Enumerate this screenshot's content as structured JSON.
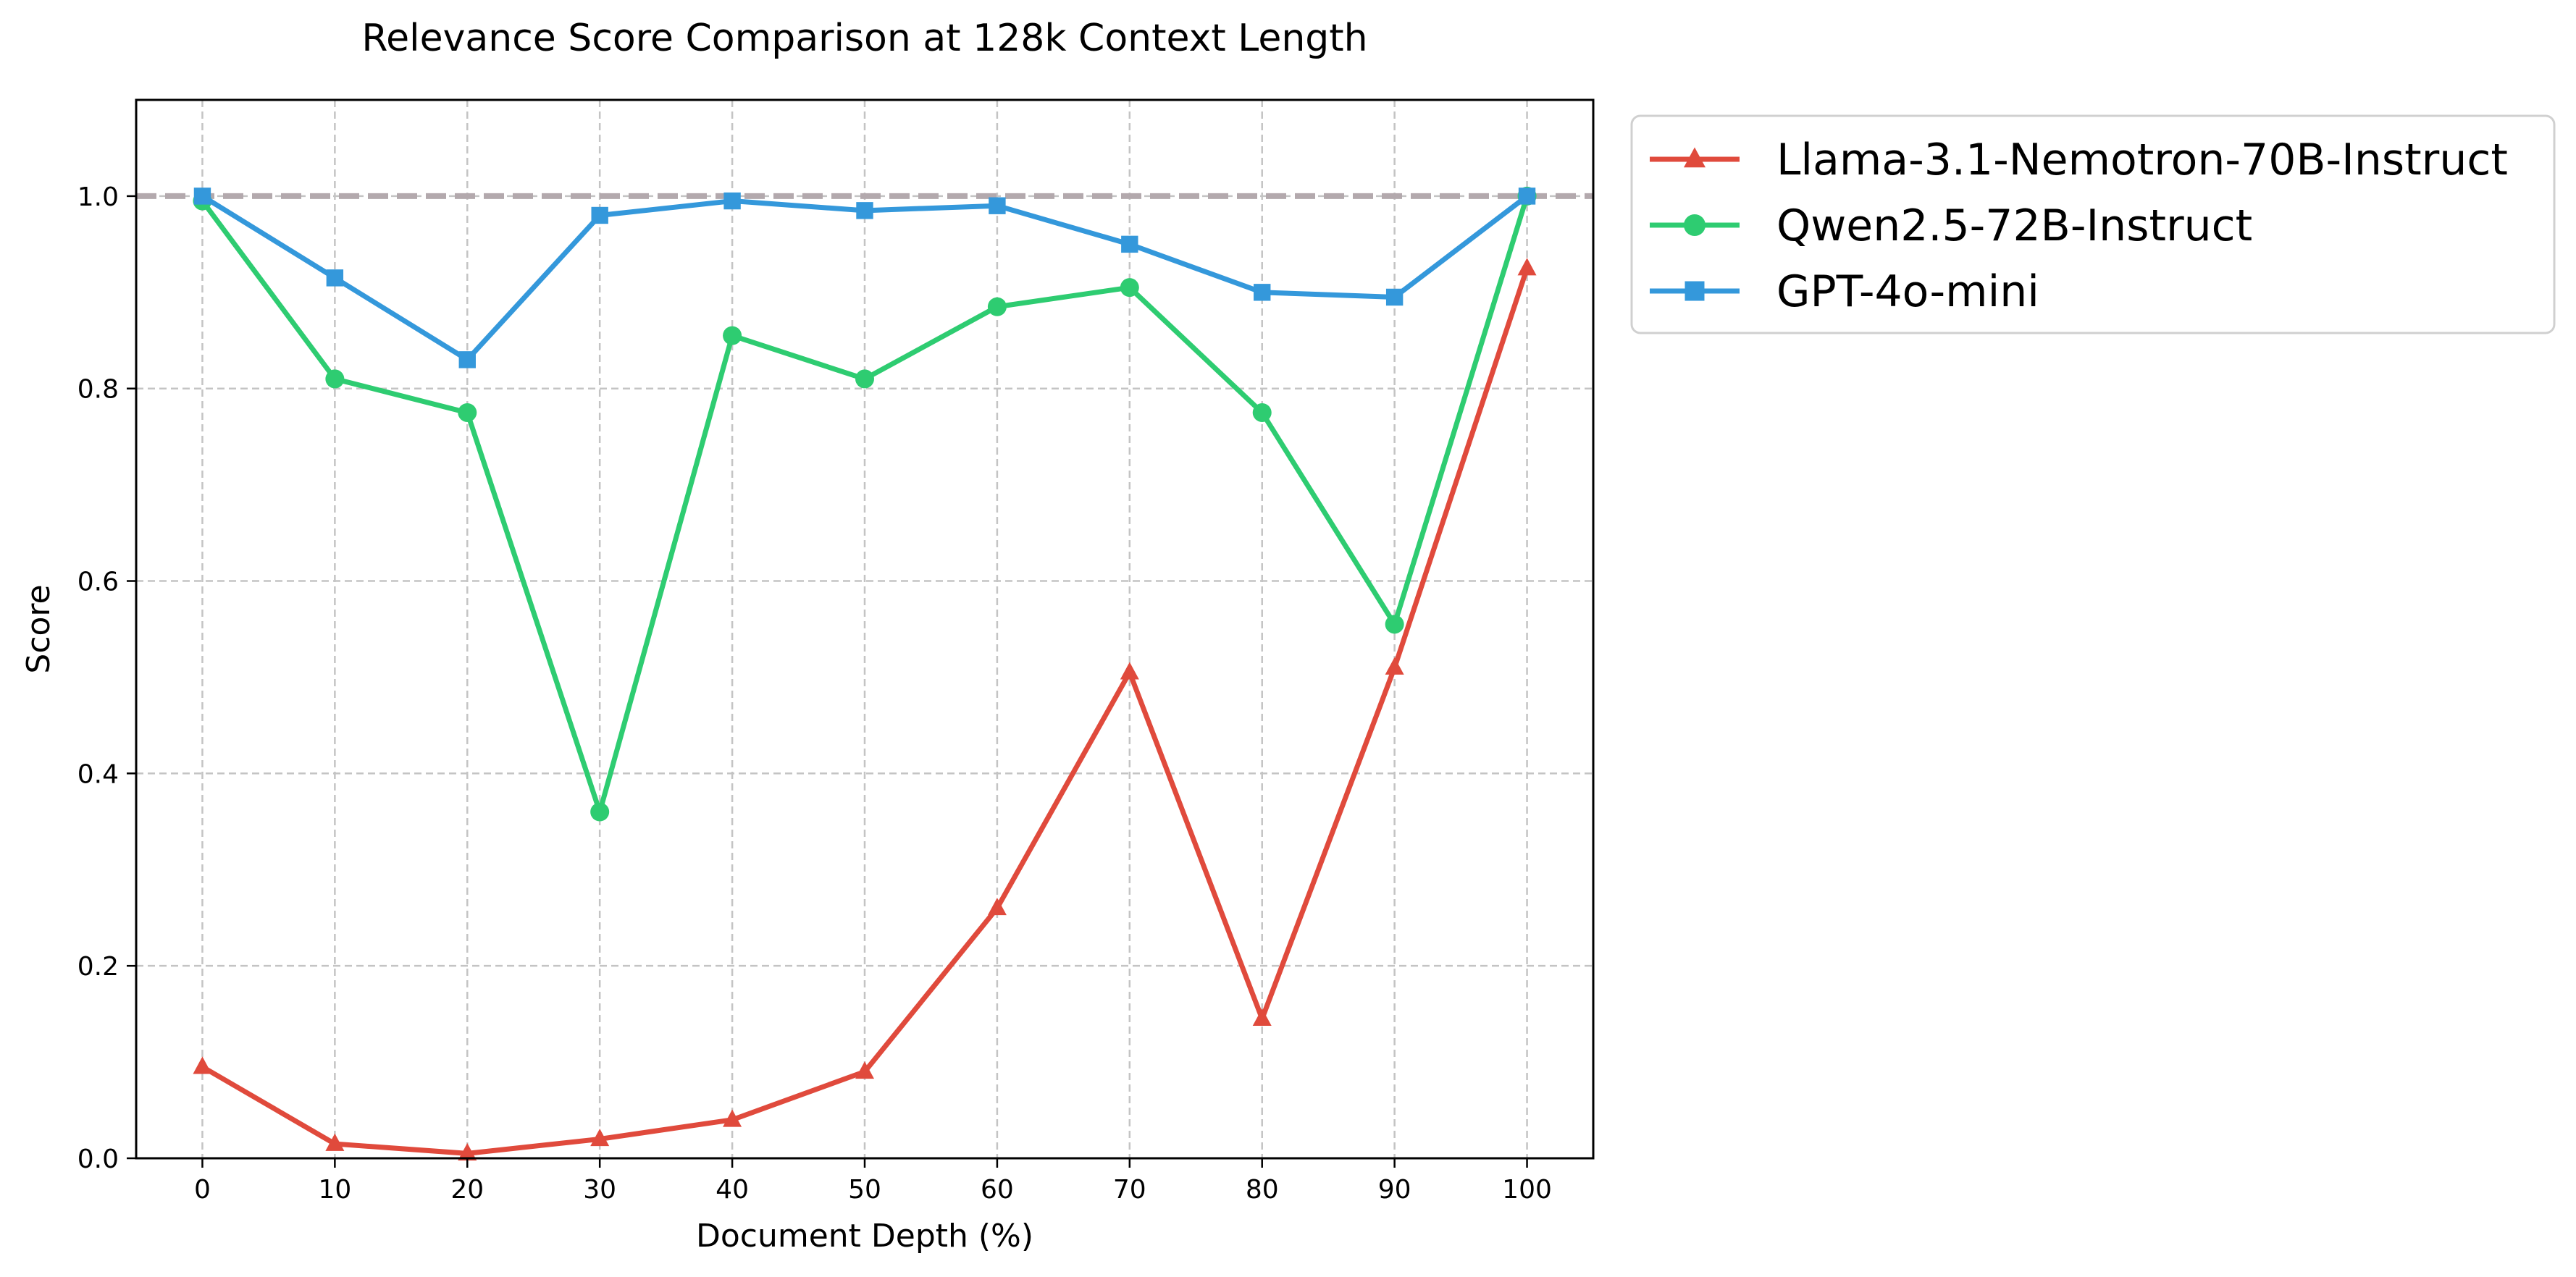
{
  "chart_data": {
    "type": "line",
    "title": "Relevance Score Comparison at 128k Context Length",
    "xlabel": "Document Depth (%)",
    "ylabel": "Score",
    "x": [
      0,
      10,
      20,
      30,
      40,
      50,
      60,
      70,
      80,
      90,
      100
    ],
    "xticks": [
      "0",
      "10",
      "20",
      "30",
      "40",
      "50",
      "60",
      "70",
      "80",
      "90",
      "100"
    ],
    "yticks": [
      "0.0",
      "0.2",
      "0.4",
      "0.6",
      "0.8",
      "1.0"
    ],
    "xlim": [
      -5,
      105
    ],
    "ylim": [
      0,
      1.1
    ],
    "grid": true,
    "legend_position": "outside-top-right",
    "reference_line": {
      "y": 1.0,
      "style": "dashed",
      "color": "#b3a9ad"
    },
    "series": [
      {
        "name": "Llama-3.1-Nemotron-70B-Instruct",
        "color": "#e04a3c",
        "marker": "triangle",
        "values": [
          0.095,
          0.015,
          0.005,
          0.02,
          0.04,
          0.09,
          0.26,
          0.505,
          0.145,
          0.51,
          0.925
        ]
      },
      {
        "name": "Qwen2.5-72B-Instruct",
        "color": "#2ecc71",
        "marker": "circle",
        "values": [
          0.995,
          0.81,
          0.775,
          0.36,
          0.855,
          0.81,
          0.885,
          0.905,
          0.775,
          0.555,
          1.0
        ]
      },
      {
        "name": "GPT-4o-mini",
        "color": "#3498db",
        "marker": "square",
        "values": [
          1.0,
          0.915,
          0.83,
          0.98,
          0.995,
          0.985,
          0.99,
          0.95,
          0.9,
          0.895,
          1.0
        ]
      }
    ]
  }
}
